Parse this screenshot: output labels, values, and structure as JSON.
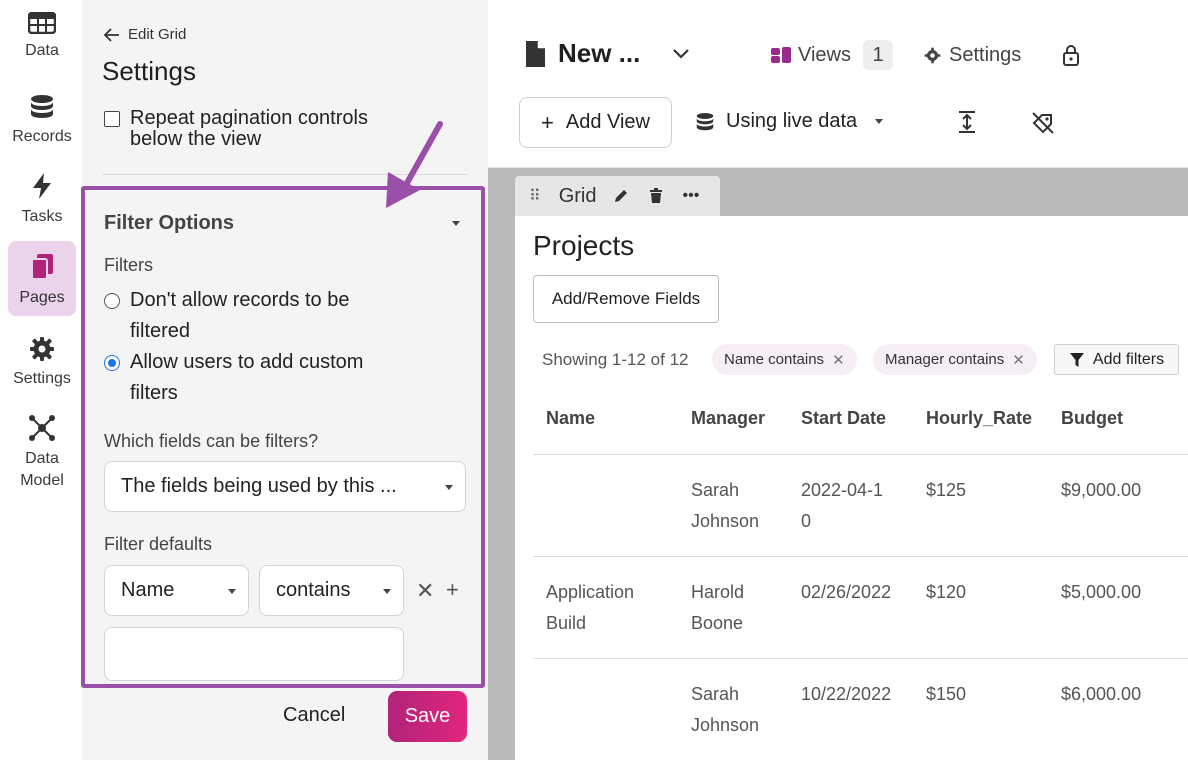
{
  "nav": [
    {
      "label": "Data",
      "icon": "table-icon"
    },
    {
      "label": "Records",
      "icon": "database-icon"
    },
    {
      "label": "Tasks",
      "icon": "lightning-icon"
    },
    {
      "label": "Pages",
      "icon": "pages-icon",
      "active": true
    },
    {
      "label": "Settings",
      "icon": "gear-icon"
    },
    {
      "label": "Data\nModel",
      "icon": "data-model-icon"
    }
  ],
  "panel": {
    "back_label": "Edit Grid",
    "title": "Settings",
    "repeat_pagination": "Repeat pagination controls below the view",
    "filter_options_title": "Filter Options",
    "filters_label": "Filters",
    "radio_no_filter": "Don't allow records to be filtered",
    "radio_custom": "Allow users to add custom filters",
    "which_fields_label": "Which fields can be filters?",
    "which_fields_value": "The fields being used by this ...",
    "filter_defaults_label": "Filter defaults",
    "default_field": "Name",
    "default_operator": "contains",
    "default_value": "",
    "cancel": "Cancel",
    "save": "Save"
  },
  "header": {
    "page_name": "New ...",
    "views_label": "Views",
    "views_count": "1",
    "settings_label": "Settings",
    "add_view": "Add View",
    "live_data": "Using live data"
  },
  "grid": {
    "tab_label": "Grid",
    "title": "Projects",
    "fields_button": "Add/Remove Fields",
    "showing": "Showing 1-12 of 12",
    "chips": [
      "Name contains",
      "Manager contains"
    ],
    "add_filters": "Add filters",
    "columns": [
      "Name",
      "Manager",
      "Start Date",
      "Hourly_Rate",
      "Budget"
    ],
    "rows": [
      {
        "name": "",
        "manager": "Sarah Johnson",
        "start": "2022-04-10",
        "rate": "$125",
        "budget": "$9,000.00"
      },
      {
        "name": "Application Build",
        "manager": "Harold Boone",
        "start": "02/26/2022",
        "rate": "$120",
        "budget": "$5,000.00"
      },
      {
        "name": "",
        "manager": "Sarah Johnson",
        "start": "10/22/2022",
        "rate": "$150",
        "budget": "$6,000.00"
      }
    ]
  },
  "colors": {
    "accent": "#9a4fa8",
    "save_gradient_start": "#b0247a",
    "save_gradient_end": "#e2257d",
    "radio_selected": "#1a73e8"
  }
}
